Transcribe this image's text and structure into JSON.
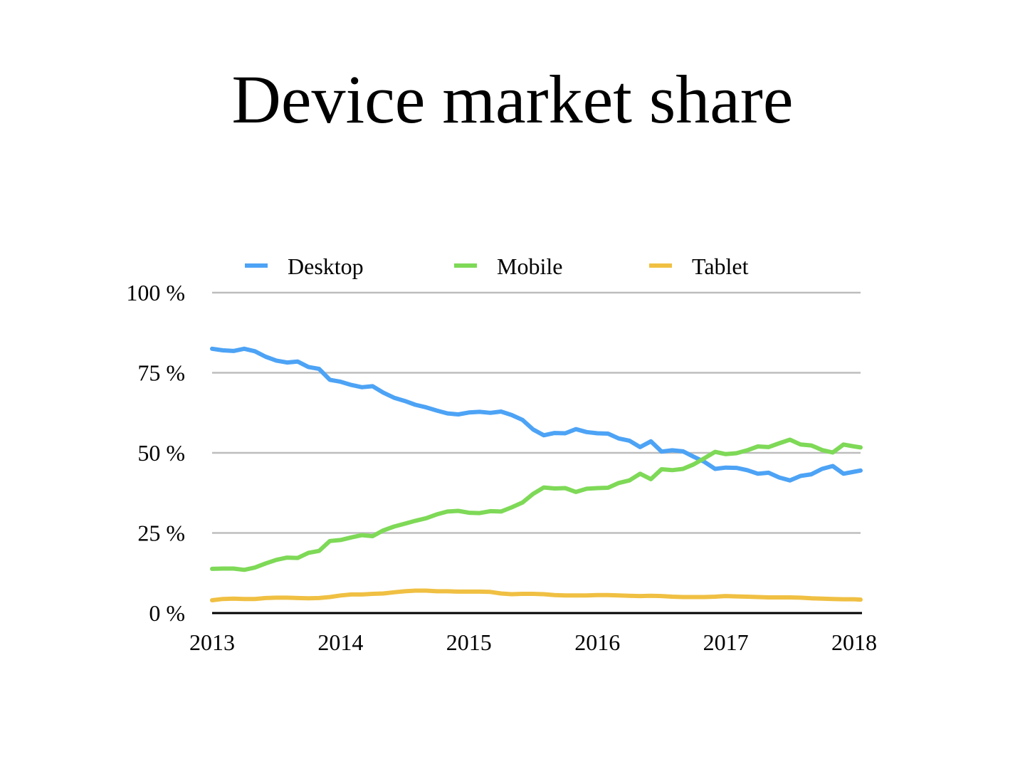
{
  "chart_data": {
    "type": "line",
    "title": "Device market share",
    "xlabel": "",
    "ylabel": "",
    "x_ticks": [
      "2013",
      "2014",
      "2015",
      "2016",
      "2017",
      "2018"
    ],
    "y_ticks": [
      "0 %",
      "25 %",
      "50 %",
      "75 %",
      "100 %"
    ],
    "xlim": [
      2013.0,
      2018.05
    ],
    "ylim": [
      0,
      100
    ],
    "grid": true,
    "legend_position": "top",
    "x": [
      2013.0,
      2013.083,
      2013.167,
      2013.25,
      2013.333,
      2013.417,
      2013.5,
      2013.583,
      2013.667,
      2013.75,
      2013.833,
      2013.917,
      2014.0,
      2014.083,
      2014.167,
      2014.25,
      2014.333,
      2014.417,
      2014.5,
      2014.583,
      2014.667,
      2014.75,
      2014.833,
      2014.917,
      2015.0,
      2015.083,
      2015.167,
      2015.25,
      2015.333,
      2015.417,
      2015.5,
      2015.583,
      2015.667,
      2015.75,
      2015.833,
      2015.917,
      2016.0,
      2016.083,
      2016.167,
      2016.25,
      2016.333,
      2016.417,
      2016.5,
      2016.583,
      2016.667,
      2016.75,
      2016.833,
      2016.917,
      2017.0,
      2017.083,
      2017.167,
      2017.25,
      2017.333,
      2017.417,
      2017.5,
      2017.583,
      2017.667,
      2017.75,
      2017.833,
      2017.917,
      2018.0,
      2018.05
    ],
    "series": [
      {
        "name": "Desktop",
        "color": "#4da3f5",
        "values": [
          82.5,
          82.0,
          81.8,
          82.5,
          81.7,
          80.0,
          78.8,
          78.2,
          78.5,
          76.8,
          76.2,
          72.8,
          72.2,
          71.2,
          70.5,
          70.8,
          68.8,
          67.2,
          66.2,
          65.0,
          64.2,
          63.2,
          62.3,
          62.0,
          62.6,
          62.8,
          62.5,
          62.9,
          61.8,
          60.3,
          57.3,
          55.5,
          56.2,
          56.1,
          57.4,
          56.5,
          56.1,
          56.0,
          54.5,
          53.8,
          51.8,
          53.6,
          50.4,
          50.8,
          50.5,
          48.8,
          47.2,
          45.0,
          45.4,
          45.3,
          44.6,
          43.5,
          43.8,
          42.3,
          41.4,
          42.8,
          43.3,
          45.0,
          45.9,
          43.5,
          44.1,
          44.5
        ]
      },
      {
        "name": "Mobile",
        "color": "#7ed957",
        "values": [
          13.8,
          13.9,
          13.9,
          13.5,
          14.2,
          15.5,
          16.6,
          17.3,
          17.2,
          18.8,
          19.4,
          22.5,
          22.8,
          23.6,
          24.3,
          24.0,
          25.8,
          27.0,
          27.9,
          28.8,
          29.6,
          30.8,
          31.7,
          31.9,
          31.3,
          31.2,
          31.8,
          31.7,
          33.0,
          34.5,
          37.2,
          39.2,
          38.9,
          39.0,
          37.8,
          38.8,
          39.0,
          39.1,
          40.6,
          41.4,
          43.5,
          41.8,
          44.9,
          44.6,
          45.0,
          46.4,
          48.3,
          50.3,
          49.6,
          49.9,
          50.8,
          52.0,
          51.8,
          53.0,
          54.1,
          52.6,
          52.3,
          50.9,
          50.1,
          52.6,
          52.0,
          51.7
        ]
      },
      {
        "name": "Tablet",
        "color": "#f0c043",
        "values": [
          4.0,
          4.4,
          4.5,
          4.4,
          4.4,
          4.7,
          4.8,
          4.8,
          4.7,
          4.6,
          4.7,
          5.0,
          5.5,
          5.8,
          5.8,
          6.0,
          6.1,
          6.5,
          6.8,
          7.0,
          7.0,
          6.8,
          6.8,
          6.7,
          6.7,
          6.7,
          6.6,
          6.1,
          5.9,
          6.0,
          6.0,
          5.9,
          5.6,
          5.5,
          5.5,
          5.5,
          5.6,
          5.6,
          5.5,
          5.4,
          5.3,
          5.4,
          5.3,
          5.1,
          5.0,
          5.0,
          5.0,
          5.1,
          5.3,
          5.2,
          5.1,
          5.0,
          4.9,
          4.9,
          4.9,
          4.8,
          4.6,
          4.5,
          4.4,
          4.3,
          4.3,
          4.2
        ]
      }
    ]
  }
}
